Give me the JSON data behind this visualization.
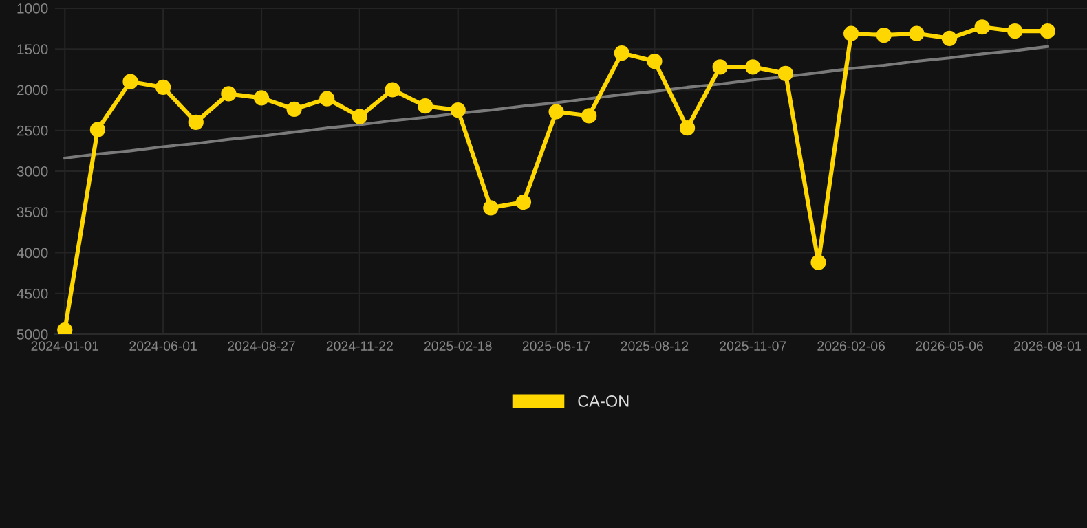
{
  "chart_data": {
    "type": "line",
    "categories": [
      "2024-01-01",
      null,
      null,
      "2024-06-01",
      null,
      null,
      "2024-08-27",
      null,
      null,
      "2024-11-22",
      null,
      null,
      "2025-02-18",
      null,
      null,
      "2025-05-17",
      null,
      null,
      "2025-08-12",
      null,
      null,
      "2025-11-07",
      null,
      null,
      "2026-02-06",
      null,
      null,
      "2026-05-06",
      null,
      null,
      "2026-08-01"
    ],
    "series": [
      {
        "name": "CA-ON",
        "color": "#ffd700",
        "marker": "circle",
        "values": [
          4950,
          2490,
          1900,
          1970,
          2400,
          2050,
          2100,
          2240,
          2110,
          2330,
          2000,
          2200,
          2250,
          3450,
          3380,
          2270,
          2320,
          1550,
          1650,
          2470,
          1720,
          1720,
          1800,
          4120,
          1310,
          1330,
          1310,
          1370,
          1230,
          1280,
          1280
        ]
      },
      {
        "type": "line",
        "color": "#7a7a7a",
        "marker": "none",
        "values": [
          2840,
          2790,
          2750,
          2700,
          2660,
          2610,
          2570,
          2520,
          2470,
          2430,
          2380,
          2340,
          2290,
          2250,
          2200,
          2160,
          2110,
          2060,
          2020,
          1970,
          1930,
          1880,
          1840,
          1790,
          1740,
          1700,
          1650,
          1610,
          1560,
          1520,
          1470
        ]
      }
    ],
    "ylim": [
      5000,
      1000
    ],
    "yticks": [
      1000,
      1500,
      2000,
      2500,
      3000,
      3500,
      4000,
      4500,
      5000
    ],
    "grid": true,
    "legend": "bottom",
    "line_style": "solid"
  }
}
